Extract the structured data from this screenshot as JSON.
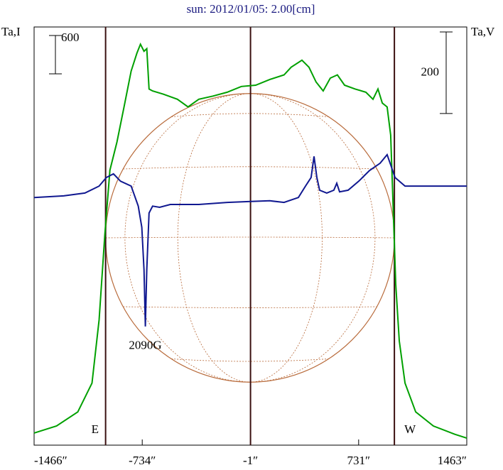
{
  "chart_data": {
    "type": "line",
    "title": "sun: 2012/01/05: 2.00[cm]",
    "y_label": "Ta,I",
    "y2_label": "Ta,V",
    "xlim": [
      -1466,
      1463
    ],
    "xticks": [
      {
        "value": -1466,
        "label": "-1466″"
      },
      {
        "value": -734,
        "label": "-734″"
      },
      {
        "value": -1,
        "label": "-1″"
      },
      {
        "value": 731,
        "label": "731″"
      },
      {
        "value": 1463,
        "label": "1463″"
      }
    ],
    "ylim": [
      0,
      6540
    ],
    "y2lim": [
      0,
      1025
    ],
    "limbs": [
      {
        "label": "E",
        "x": -982
      },
      {
        "label": "W",
        "x": 973
      }
    ],
    "scale_bars": [
      {
        "value": 600,
        "axis": "y"
      },
      {
        "value": 200,
        "axis": "y2"
      }
    ],
    "annotation": "2090G",
    "series": [
      {
        "name": "I",
        "color": "#00a000",
        "x": [
          -1466,
          -1314,
          -1170,
          -1074,
          -1026,
          -987,
          -953,
          -905,
          -857,
          -809,
          -770,
          -746,
          -722,
          -703,
          -688,
          -664,
          -592,
          -496,
          -424,
          -351,
          -255,
          -159,
          -63,
          34,
          130,
          226,
          274,
          347,
          395,
          443,
          491,
          539,
          587,
          636,
          708,
          780,
          828,
          862,
          891,
          924,
          948,
          963,
          982,
          1006,
          1045,
          1117,
          1237,
          1382,
          1463
        ],
        "values": [
          190,
          300,
          520,
          970,
          1960,
          3300,
          4300,
          4740,
          5290,
          5850,
          6130,
          6270,
          6160,
          6200,
          5570,
          5540,
          5490,
          5410,
          5290,
          5410,
          5460,
          5520,
          5610,
          5630,
          5720,
          5790,
          5910,
          6020,
          5910,
          5680,
          5540,
          5740,
          5790,
          5630,
          5570,
          5520,
          5410,
          5570,
          5350,
          5290,
          4850,
          3850,
          2520,
          1630,
          970,
          520,
          300,
          170,
          110
        ]
      },
      {
        "name": "V",
        "color": "#101890",
        "axis": "y2",
        "x": [
          -1466,
          -1266,
          -1122,
          -1026,
          -977,
          -929,
          -881,
          -809,
          -761,
          -737,
          -722,
          -713,
          -703,
          -688,
          -664,
          -616,
          -544,
          -351,
          -159,
          -14,
          130,
          226,
          323,
          371,
          409,
          429,
          448,
          467,
          515,
          563,
          583,
          602,
          660,
          732,
          804,
          876,
          924,
          948,
          977,
          1045,
          1189,
          1463
        ],
        "values": [
          607,
          611,
          618,
          635,
          656,
          665,
          647,
          635,
          586,
          534,
          430,
          291,
          430,
          569,
          586,
          583,
          590,
          590,
          595,
          597,
          599,
          595,
          607,
          635,
          656,
          708,
          656,
          625,
          618,
          625,
          642,
          621,
          625,
          647,
          673,
          691,
          712,
          687,
          656,
          635,
          635,
          635
        ]
      }
    ]
  }
}
